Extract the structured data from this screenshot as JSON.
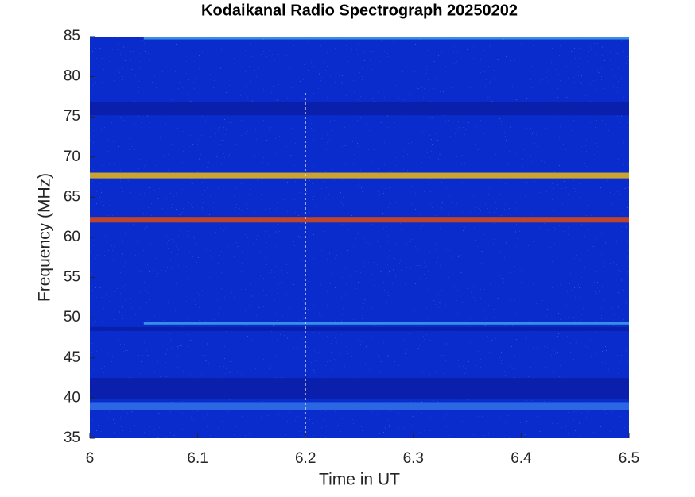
{
  "chart_data": {
    "type": "spectrogram",
    "title": "Kodaikanal Radio Spectrograph  20250202",
    "x_label": "Time in UT",
    "y_label": "Frequency (MHz)",
    "xlim": [
      6,
      6.5
    ],
    "xticks": [
      6,
      6.1,
      6.2,
      6.3,
      6.4,
      6.5
    ],
    "ylim": [
      35,
      85
    ],
    "yticks": [
      35,
      40,
      45,
      50,
      55,
      60,
      65,
      70,
      75,
      80,
      85
    ],
    "background": "#0a2ccc",
    "bands": [
      {
        "y": 76,
        "width": 1.6,
        "x": [
          6,
          6.5
        ],
        "color": "#0a1ea8"
      },
      {
        "y": 41.2,
        "width": 2.6,
        "x": [
          6,
          6.5
        ],
        "color": "#0a1ea8"
      },
      {
        "y": 48.6,
        "width": 0.5,
        "x": [
          6,
          6.5
        ],
        "color": "#0a1ea8"
      },
      {
        "y": 67.7,
        "width": 0.7,
        "x": [
          6,
          6.5
        ],
        "color": "#e0b020"
      },
      {
        "y": 62.2,
        "width": 0.7,
        "x": [
          6,
          6.5
        ],
        "color": "#d04818"
      },
      {
        "y": 49.3,
        "width": 0.3,
        "x": [
          6.05,
          6.5
        ],
        "color": "#3c9ae8"
      },
      {
        "y": 39,
        "width": 1.0,
        "x": [
          6,
          6.5
        ],
        "color": "#2f6ee4"
      },
      {
        "y": 84.8,
        "width": 0.3,
        "x": [
          6.05,
          6.5
        ],
        "color": "#3c9ae8"
      }
    ],
    "vlines": [
      {
        "x": 6.2,
        "ylim": [
          35,
          78
        ],
        "color": "#ffffff"
      }
    ]
  }
}
